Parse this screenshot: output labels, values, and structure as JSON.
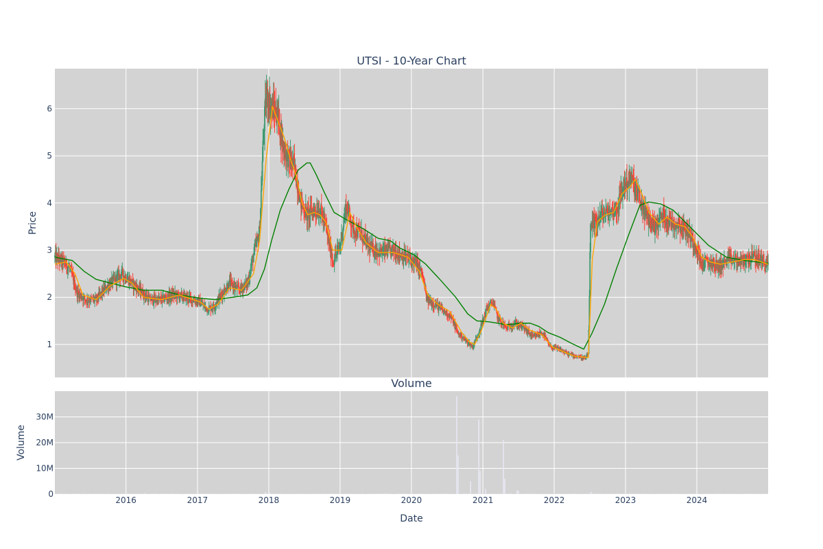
{
  "chart_data": [
    {
      "type": "candlestick",
      "title": "UTSI - 10-Year Chart",
      "ylabel": "Price",
      "xlim": [
        "2015-01-02",
        "2024-12-31"
      ],
      "ylim": [
        0.3,
        6.85
      ],
      "yticks": [
        1,
        2,
        3,
        4,
        5,
        6
      ],
      "colors": {
        "up": "#3d9970",
        "down": "#ff4136",
        "ma_short": "#ffa500",
        "ma_long": "#008000",
        "plot_bg": "#d3d3d3",
        "grid": "#ffffff"
      },
      "series": [
        {
          "type": "candlestick"
        },
        {
          "type": "line",
          "color": "#ffa500"
        },
        {
          "type": "line",
          "color": "#008000"
        }
      ],
      "price_path": [
        [
          "2015-01-02",
          2.85
        ],
        [
          "2015-02-15",
          2.75
        ],
        [
          "2015-03-20",
          2.6
        ],
        [
          "2015-04-25",
          2.1
        ],
        [
          "2015-06-10",
          1.95
        ],
        [
          "2015-08-01",
          1.95
        ],
        [
          "2015-10-01",
          2.25
        ],
        [
          "2015-12-10",
          2.5
        ],
        [
          "2016-01-20",
          2.35
        ],
        [
          "2016-03-10",
          2.15
        ],
        [
          "2016-05-01",
          1.95
        ],
        [
          "2016-07-01",
          1.95
        ],
        [
          "2016-09-01",
          2.05
        ],
        [
          "2016-11-01",
          2.0
        ],
        [
          "2017-01-10",
          1.9
        ],
        [
          "2017-02-20",
          1.75
        ],
        [
          "2017-03-25",
          1.8
        ],
        [
          "2017-05-01",
          2.05
        ],
        [
          "2017-06-15",
          2.3
        ],
        [
          "2017-08-01",
          2.15
        ],
        [
          "2017-09-15",
          2.3
        ],
        [
          "2017-10-15",
          2.9
        ],
        [
          "2017-11-15",
          3.4
        ],
        [
          "2017-12-05",
          5.5
        ],
        [
          "2017-12-20",
          6.3
        ],
        [
          "2018-01-15",
          6.0
        ],
        [
          "2018-02-15",
          5.9
        ],
        [
          "2018-03-15",
          5.2
        ],
        [
          "2018-04-15",
          4.9
        ],
        [
          "2018-05-10",
          4.8
        ],
        [
          "2018-06-15",
          4.0
        ],
        [
          "2018-07-15",
          3.75
        ],
        [
          "2018-08-20",
          3.85
        ],
        [
          "2018-09-20",
          3.85
        ],
        [
          "2018-10-20",
          3.5
        ],
        [
          "2018-11-25",
          2.75
        ],
        [
          "2019-01-01",
          3.1
        ],
        [
          "2019-02-01",
          3.95
        ],
        [
          "2019-03-10",
          3.45
        ],
        [
          "2019-04-15",
          3.35
        ],
        [
          "2019-06-01",
          3.05
        ],
        [
          "2019-08-01",
          2.95
        ],
        [
          "2019-10-01",
          3.0
        ],
        [
          "2019-12-01",
          2.85
        ],
        [
          "2020-01-20",
          2.75
        ],
        [
          "2020-02-25",
          2.5
        ],
        [
          "2020-03-20",
          1.95
        ],
        [
          "2020-05-01",
          1.85
        ],
        [
          "2020-06-15",
          1.7
        ],
        [
          "2020-07-20",
          1.6
        ],
        [
          "2020-08-25",
          1.25
        ],
        [
          "2020-10-01",
          1.1
        ],
        [
          "2020-11-10",
          0.95
        ],
        [
          "2020-12-20",
          1.35
        ],
        [
          "2021-01-20",
          1.75
        ],
        [
          "2021-02-20",
          1.9
        ],
        [
          "2021-03-20",
          1.55
        ],
        [
          "2021-05-01",
          1.35
        ],
        [
          "2021-06-15",
          1.45
        ],
        [
          "2021-08-01",
          1.35
        ],
        [
          "2021-09-15",
          1.15
        ],
        [
          "2021-11-01",
          1.25
        ],
        [
          "2021-12-10",
          0.95
        ],
        [
          "2022-01-25",
          0.9
        ],
        [
          "2022-03-10",
          0.8
        ],
        [
          "2022-04-25",
          0.75
        ],
        [
          "2022-06-10",
          0.7
        ],
        [
          "2022-06-25",
          0.8
        ],
        [
          "2022-07-05",
          3.4
        ],
        [
          "2022-08-01",
          3.6
        ],
        [
          "2022-09-01",
          3.75
        ],
        [
          "2022-10-10",
          3.8
        ],
        [
          "2022-11-20",
          3.9
        ],
        [
          "2022-12-25",
          4.4
        ],
        [
          "2023-02-01",
          4.5
        ],
        [
          "2023-03-10",
          4.1
        ],
        [
          "2023-04-20",
          3.7
        ],
        [
          "2023-06-01",
          3.5
        ],
        [
          "2023-07-10",
          3.75
        ],
        [
          "2023-08-20",
          3.6
        ],
        [
          "2023-10-01",
          3.55
        ],
        [
          "2023-11-15",
          3.4
        ],
        [
          "2024-01-01",
          3.05
        ],
        [
          "2024-01-25",
          2.7
        ],
        [
          "2024-03-10",
          2.75
        ],
        [
          "2024-04-20",
          2.65
        ],
        [
          "2024-06-15",
          2.8
        ],
        [
          "2024-08-20",
          2.75
        ],
        [
          "2024-10-01",
          2.85
        ],
        [
          "2024-11-15",
          2.8
        ],
        [
          "2024-12-31",
          2.7
        ]
      ],
      "ma_short": [
        [
          "2015-01-02",
          2.7
        ],
        [
          "2015-03-01",
          2.75
        ],
        [
          "2015-04-15",
          2.5
        ],
        [
          "2015-05-25",
          2.05
        ],
        [
          "2015-08-01",
          1.95
        ],
        [
          "2015-10-15",
          2.25
        ],
        [
          "2015-12-20",
          2.4
        ],
        [
          "2016-02-01",
          2.3
        ],
        [
          "2016-04-01",
          2.0
        ],
        [
          "2016-07-01",
          1.95
        ],
        [
          "2016-10-01",
          2.05
        ],
        [
          "2017-01-15",
          1.9
        ],
        [
          "2017-03-01",
          1.75
        ],
        [
          "2017-04-15",
          1.85
        ],
        [
          "2017-06-15",
          2.2
        ],
        [
          "2017-08-15",
          2.15
        ],
        [
          "2017-10-15",
          2.5
        ],
        [
          "2017-11-15",
          3.2
        ],
        [
          "2017-12-20",
          5.0
        ],
        [
          "2018-01-20",
          6.05
        ],
        [
          "2018-02-20",
          5.7
        ],
        [
          "2018-03-20",
          5.4
        ],
        [
          "2018-04-20",
          4.95
        ],
        [
          "2018-05-20",
          4.6
        ],
        [
          "2018-06-20",
          4.0
        ],
        [
          "2018-07-20",
          3.75
        ],
        [
          "2018-08-20",
          3.8
        ],
        [
          "2018-09-20",
          3.75
        ],
        [
          "2018-10-20",
          3.6
        ],
        [
          "2018-11-25",
          3.0
        ],
        [
          "2019-01-10",
          3.0
        ],
        [
          "2019-02-20",
          3.8
        ],
        [
          "2019-03-25",
          3.5
        ],
        [
          "2019-05-15",
          3.15
        ],
        [
          "2019-07-15",
          2.95
        ],
        [
          "2019-10-01",
          2.95
        ],
        [
          "2019-12-15",
          2.85
        ],
        [
          "2020-02-10",
          2.55
        ],
        [
          "2020-03-25",
          2.05
        ],
        [
          "2020-05-15",
          1.85
        ],
        [
          "2020-07-15",
          1.7
        ],
        [
          "2020-09-15",
          1.25
        ],
        [
          "2020-10-25",
          1.05
        ],
        [
          "2020-11-20",
          1.0
        ],
        [
          "2020-12-25",
          1.3
        ],
        [
          "2021-02-10",
          1.85
        ],
        [
          "2021-03-10",
          1.75
        ],
        [
          "2021-04-15",
          1.45
        ],
        [
          "2021-06-01",
          1.35
        ],
        [
          "2021-07-15",
          1.45
        ],
        [
          "2021-09-01",
          1.3
        ],
        [
          "2021-11-01",
          1.2
        ],
        [
          "2021-12-20",
          0.95
        ],
        [
          "2022-02-15",
          0.85
        ],
        [
          "2022-04-15",
          0.75
        ],
        [
          "2022-06-25",
          0.72
        ],
        [
          "2022-07-15",
          2.8
        ],
        [
          "2022-08-10",
          3.6
        ],
        [
          "2022-09-20",
          3.75
        ],
        [
          "2022-11-01",
          3.8
        ],
        [
          "2022-12-15",
          4.2
        ],
        [
          "2023-01-25",
          4.35
        ],
        [
          "2023-02-20",
          4.5
        ],
        [
          "2023-03-25",
          4.2
        ],
        [
          "2023-05-01",
          3.8
        ],
        [
          "2023-06-20",
          3.55
        ],
        [
          "2023-08-01",
          3.7
        ],
        [
          "2023-09-15",
          3.55
        ],
        [
          "2023-11-01",
          3.5
        ],
        [
          "2023-12-15",
          3.25
        ],
        [
          "2024-01-25",
          2.85
        ],
        [
          "2024-03-10",
          2.75
        ],
        [
          "2024-05-01",
          2.7
        ],
        [
          "2024-07-01",
          2.75
        ],
        [
          "2024-09-01",
          2.8
        ],
        [
          "2024-10-20",
          2.8
        ],
        [
          "2024-12-31",
          2.7
        ]
      ],
      "ma_long": [
        [
          "2015-01-02",
          2.85
        ],
        [
          "2015-04-01",
          2.78
        ],
        [
          "2015-06-01",
          2.55
        ],
        [
          "2015-08-01",
          2.38
        ],
        [
          "2015-10-15",
          2.3
        ],
        [
          "2016-01-01",
          2.22
        ],
        [
          "2016-04-01",
          2.15
        ],
        [
          "2016-07-01",
          2.15
        ],
        [
          "2016-10-01",
          2.05
        ],
        [
          "2017-01-15",
          1.98
        ],
        [
          "2017-04-01",
          1.95
        ],
        [
          "2017-07-01",
          2.0
        ],
        [
          "2017-09-15",
          2.05
        ],
        [
          "2017-11-01",
          2.2
        ],
        [
          "2017-12-10",
          2.6
        ],
        [
          "2018-01-15",
          3.2
        ],
        [
          "2018-03-01",
          3.85
        ],
        [
          "2018-04-15",
          4.3
        ],
        [
          "2018-06-01",
          4.7
        ],
        [
          "2018-07-15",
          4.85
        ],
        [
          "2018-08-01",
          4.85
        ],
        [
          "2018-09-01",
          4.6
        ],
        [
          "2018-10-15",
          4.2
        ],
        [
          "2018-12-01",
          3.8
        ],
        [
          "2019-02-01",
          3.65
        ],
        [
          "2019-05-01",
          3.45
        ],
        [
          "2019-07-15",
          3.25
        ],
        [
          "2019-09-15",
          3.2
        ],
        [
          "2019-11-01",
          3.05
        ],
        [
          "2020-01-15",
          2.9
        ],
        [
          "2020-03-15",
          2.7
        ],
        [
          "2020-06-01",
          2.35
        ],
        [
          "2020-08-15",
          2.0
        ],
        [
          "2020-10-15",
          1.65
        ],
        [
          "2020-12-01",
          1.5
        ],
        [
          "2021-02-01",
          1.48
        ],
        [
          "2021-05-01",
          1.42
        ],
        [
          "2021-07-15",
          1.45
        ],
        [
          "2021-09-01",
          1.45
        ],
        [
          "2021-10-15",
          1.38
        ],
        [
          "2021-12-01",
          1.25
        ],
        [
          "2022-02-01",
          1.15
        ],
        [
          "2022-04-01",
          1.02
        ],
        [
          "2022-06-01",
          0.9
        ],
        [
          "2022-07-15",
          1.25
        ],
        [
          "2022-09-15",
          1.85
        ],
        [
          "2022-11-15",
          2.6
        ],
        [
          "2023-01-15",
          3.3
        ],
        [
          "2023-03-15",
          3.95
        ],
        [
          "2023-05-01",
          4.02
        ],
        [
          "2023-07-01",
          3.98
        ],
        [
          "2023-09-01",
          3.85
        ],
        [
          "2023-11-01",
          3.6
        ],
        [
          "2024-01-01",
          3.35
        ],
        [
          "2024-03-01",
          3.1
        ],
        [
          "2024-06-01",
          2.85
        ],
        [
          "2024-09-01",
          2.78
        ],
        [
          "2024-12-31",
          2.72
        ]
      ]
    },
    {
      "type": "bar",
      "title": "Volume",
      "xlabel": "Date",
      "ylabel": "Volume",
      "xlim": [
        "2015-01-02",
        "2024-12-31"
      ],
      "ylim": [
        0,
        40000000
      ],
      "yticks": [
        {
          "value": 0,
          "label": "0"
        },
        {
          "value": 10000000,
          "label": "10M"
        },
        {
          "value": 20000000,
          "label": "20M"
        },
        {
          "value": 30000000,
          "label": "30M"
        }
      ],
      "xticks": [
        {
          "date": "2016-01-01",
          "label": "2016"
        },
        {
          "date": "2017-01-01",
          "label": "2017"
        },
        {
          "date": "2018-01-01",
          "label": "2018"
        },
        {
          "date": "2019-01-01",
          "label": "2019"
        },
        {
          "date": "2020-01-01",
          "label": "2020"
        },
        {
          "date": "2021-01-01",
          "label": "2021"
        },
        {
          "date": "2022-01-01",
          "label": "2022"
        },
        {
          "date": "2023-01-01",
          "label": "2023"
        },
        {
          "date": "2024-01-01",
          "label": "2024"
        }
      ],
      "bar_color": "#e8e8f4",
      "spikes": [
        [
          "2020-08-20",
          38000000
        ],
        [
          "2020-08-27",
          15000000
        ],
        [
          "2020-10-30",
          5000000
        ],
        [
          "2020-12-11",
          29000000
        ],
        [
          "2020-12-18",
          9000000
        ],
        [
          "2021-01-15",
          2000000
        ],
        [
          "2021-04-16",
          21000000
        ],
        [
          "2021-04-23",
          6000000
        ],
        [
          "2021-06-25",
          1500000
        ],
        [
          "2021-07-02",
          1200000
        ],
        [
          "2017-12-15",
          800000
        ],
        [
          "2018-01-05",
          600000
        ],
        [
          "2022-07-08",
          900000
        ],
        [
          "2016-04-08",
          400000
        ]
      ],
      "baseline_volume": 200000
    }
  ]
}
